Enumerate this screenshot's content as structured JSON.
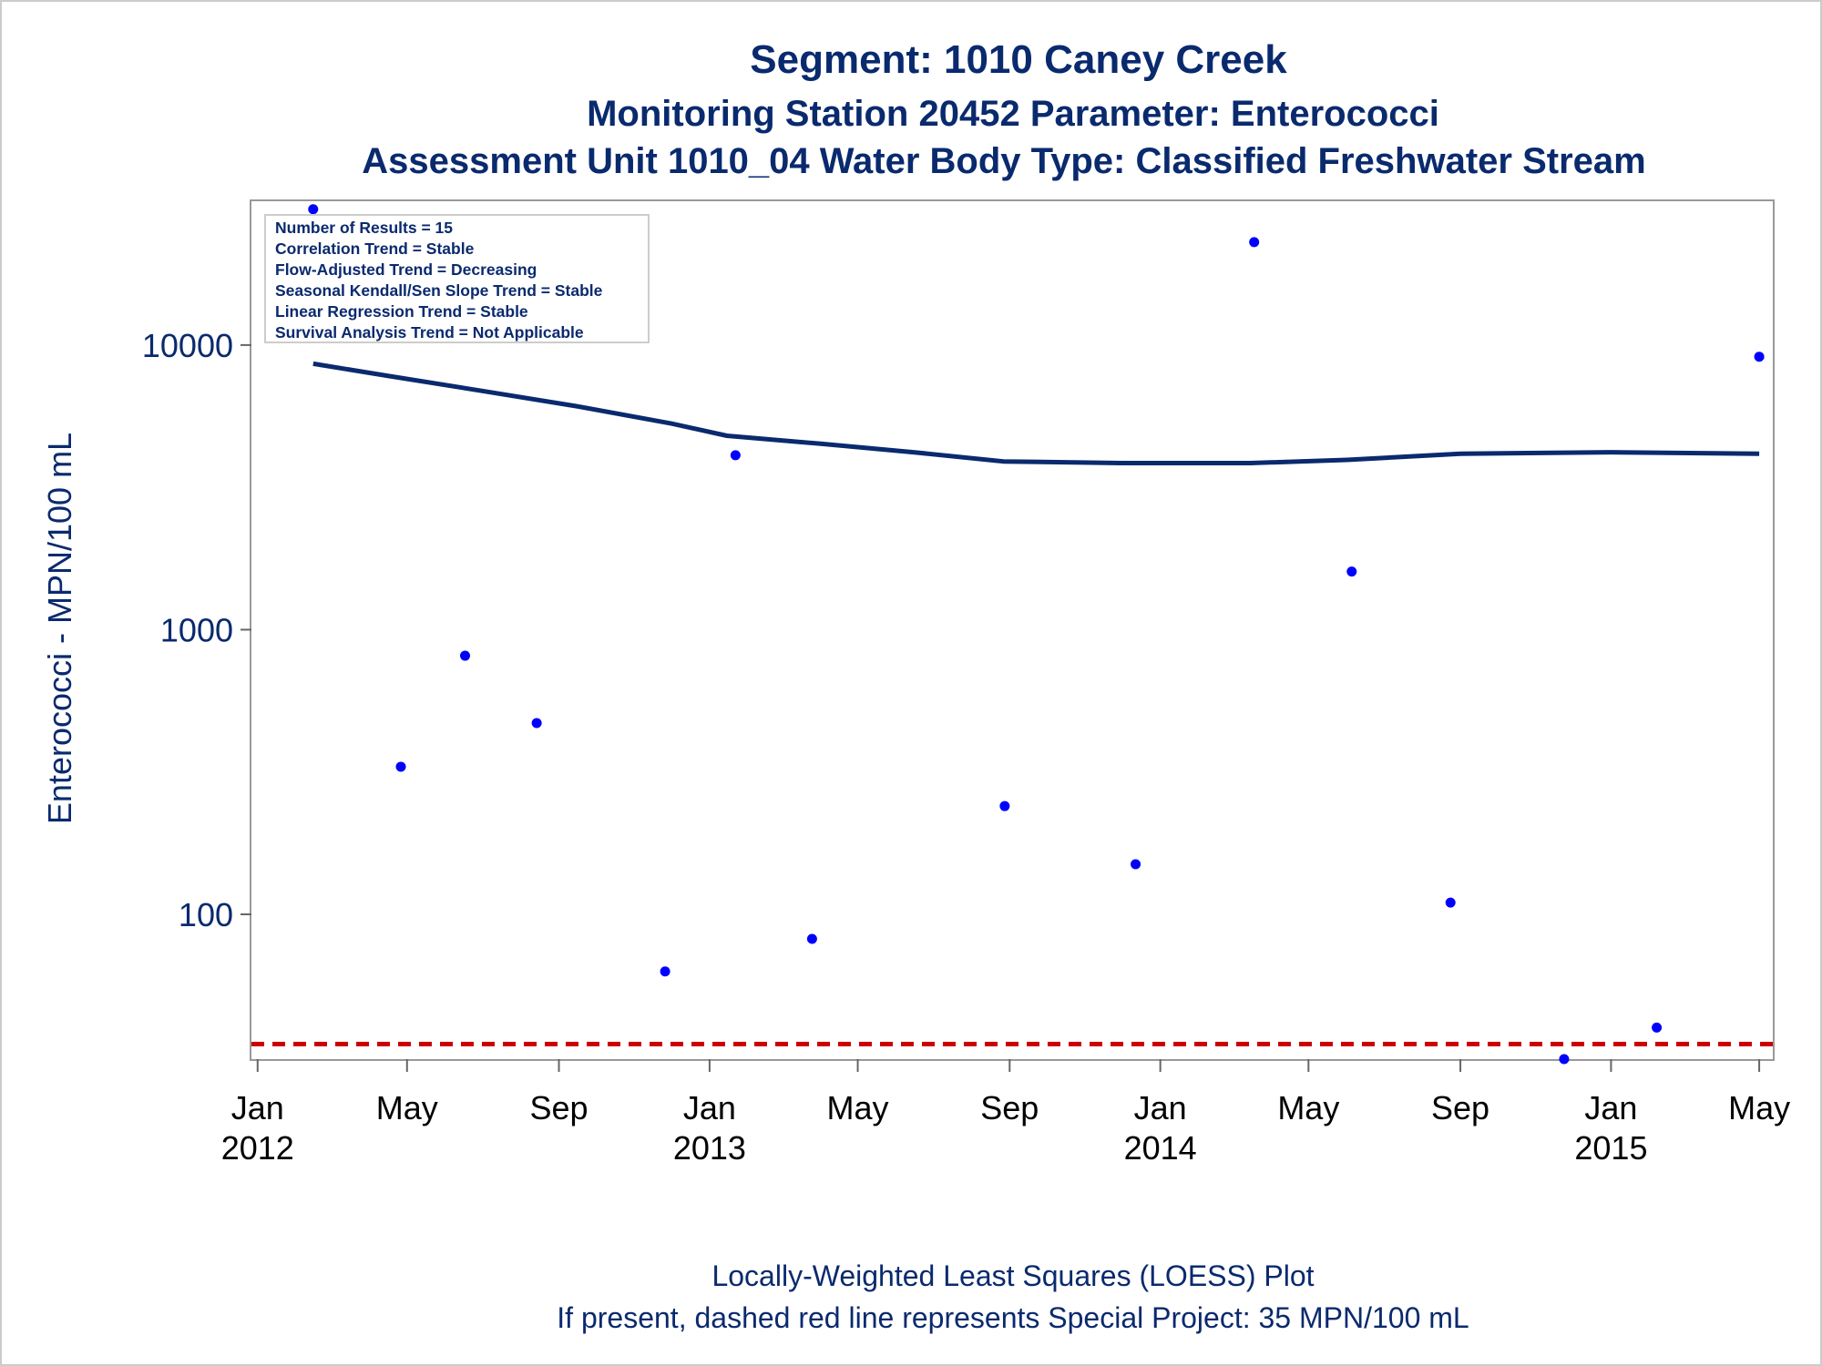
{
  "titles": {
    "line1": "Segment: 1010  Caney Creek",
    "line2": "Monitoring Station 20452 Parameter: Enterococci",
    "line3": "Assessment Unit 1010_04   Water Body Type: Classified Freshwater Stream"
  },
  "inset": [
    "Number of Results = 15",
    "Correlation Trend = Stable",
    "Flow-Adjusted Trend = Decreasing",
    "Seasonal Kendall/Sen Slope Trend = Stable",
    "Linear Regression Trend = Stable",
    "Survival Analysis Trend = Not Applicable"
  ],
  "footnotes": {
    "line1": "Locally-Weighted Least Squares (LOESS) Plot",
    "line2": "If present, dashed red line represents Special Project: 35 MPN/100 mL"
  },
  "colors": {
    "points": "#0000ff",
    "loess": "#0a2a6e",
    "reference": "#cc0000",
    "frame": "#999999"
  },
  "chart_data": {
    "type": "scatter",
    "scale": {
      "y": "log"
    },
    "ylabel": "Enterococci - MPN/100 mL",
    "ylim": [
      31,
      32000
    ],
    "xlim": [
      "2011-12-27",
      "2015-05-12"
    ],
    "yticks": [
      {
        "value": 100,
        "label": "100"
      },
      {
        "value": 1000,
        "label": "1000"
      },
      {
        "value": 10000,
        "label": "10000"
      }
    ],
    "xticks": [
      {
        "date": "2012-01-01",
        "label1": "Jan",
        "label2": "2012"
      },
      {
        "date": "2012-05-01",
        "label1": "May",
        "label2": ""
      },
      {
        "date": "2012-09-01",
        "label1": "Sep",
        "label2": ""
      },
      {
        "date": "2013-01-01",
        "label1": "Jan",
        "label2": "2013"
      },
      {
        "date": "2013-05-01",
        "label1": "May",
        "label2": ""
      },
      {
        "date": "2013-09-01",
        "label1": "Sep",
        "label2": ""
      },
      {
        "date": "2014-01-01",
        "label1": "Jan",
        "label2": "2014"
      },
      {
        "date": "2014-05-01",
        "label1": "May",
        "label2": ""
      },
      {
        "date": "2014-09-01",
        "label1": "Sep",
        "label2": ""
      },
      {
        "date": "2015-01-01",
        "label1": "Jan",
        "label2": "2015"
      },
      {
        "date": "2015-05-01",
        "label1": "May",
        "label2": ""
      }
    ],
    "points": [
      {
        "date": "2012-02-15",
        "value": 30000
      },
      {
        "date": "2012-04-26",
        "value": 330
      },
      {
        "date": "2012-06-17",
        "value": 810
      },
      {
        "date": "2012-08-14",
        "value": 470
      },
      {
        "date": "2012-11-26",
        "value": 63
      },
      {
        "date": "2013-01-22",
        "value": 4100
      },
      {
        "date": "2013-03-25",
        "value": 82
      },
      {
        "date": "2013-08-28",
        "value": 240
      },
      {
        "date": "2013-12-12",
        "value": 150
      },
      {
        "date": "2014-03-18",
        "value": 23000
      },
      {
        "date": "2014-06-05",
        "value": 1600
      },
      {
        "date": "2014-08-24",
        "value": 110
      },
      {
        "date": "2014-11-24",
        "value": 31
      },
      {
        "date": "2015-02-07",
        "value": 40
      },
      {
        "date": "2015-05-01",
        "value": 9100
      }
    ],
    "loess": [
      {
        "date": "2012-02-15",
        "value": 8600
      },
      {
        "date": "2012-04-15",
        "value": 7800
      },
      {
        "date": "2012-07-01",
        "value": 6900
      },
      {
        "date": "2012-09-15",
        "value": 6100
      },
      {
        "date": "2012-12-01",
        "value": 5300
      },
      {
        "date": "2013-01-15",
        "value": 4800
      },
      {
        "date": "2013-04-01",
        "value": 4500
      },
      {
        "date": "2013-06-15",
        "value": 4200
      },
      {
        "date": "2013-08-27",
        "value": 3900
      },
      {
        "date": "2013-12-01",
        "value": 3850
      },
      {
        "date": "2014-03-15",
        "value": 3850
      },
      {
        "date": "2014-06-01",
        "value": 3950
      },
      {
        "date": "2014-09-01",
        "value": 4150
      },
      {
        "date": "2015-01-01",
        "value": 4200
      },
      {
        "date": "2015-05-01",
        "value": 4150
      }
    ],
    "reference_line": {
      "value": 35,
      "style": "dashed"
    },
    "legend": "inset top-left",
    "grid": false
  }
}
